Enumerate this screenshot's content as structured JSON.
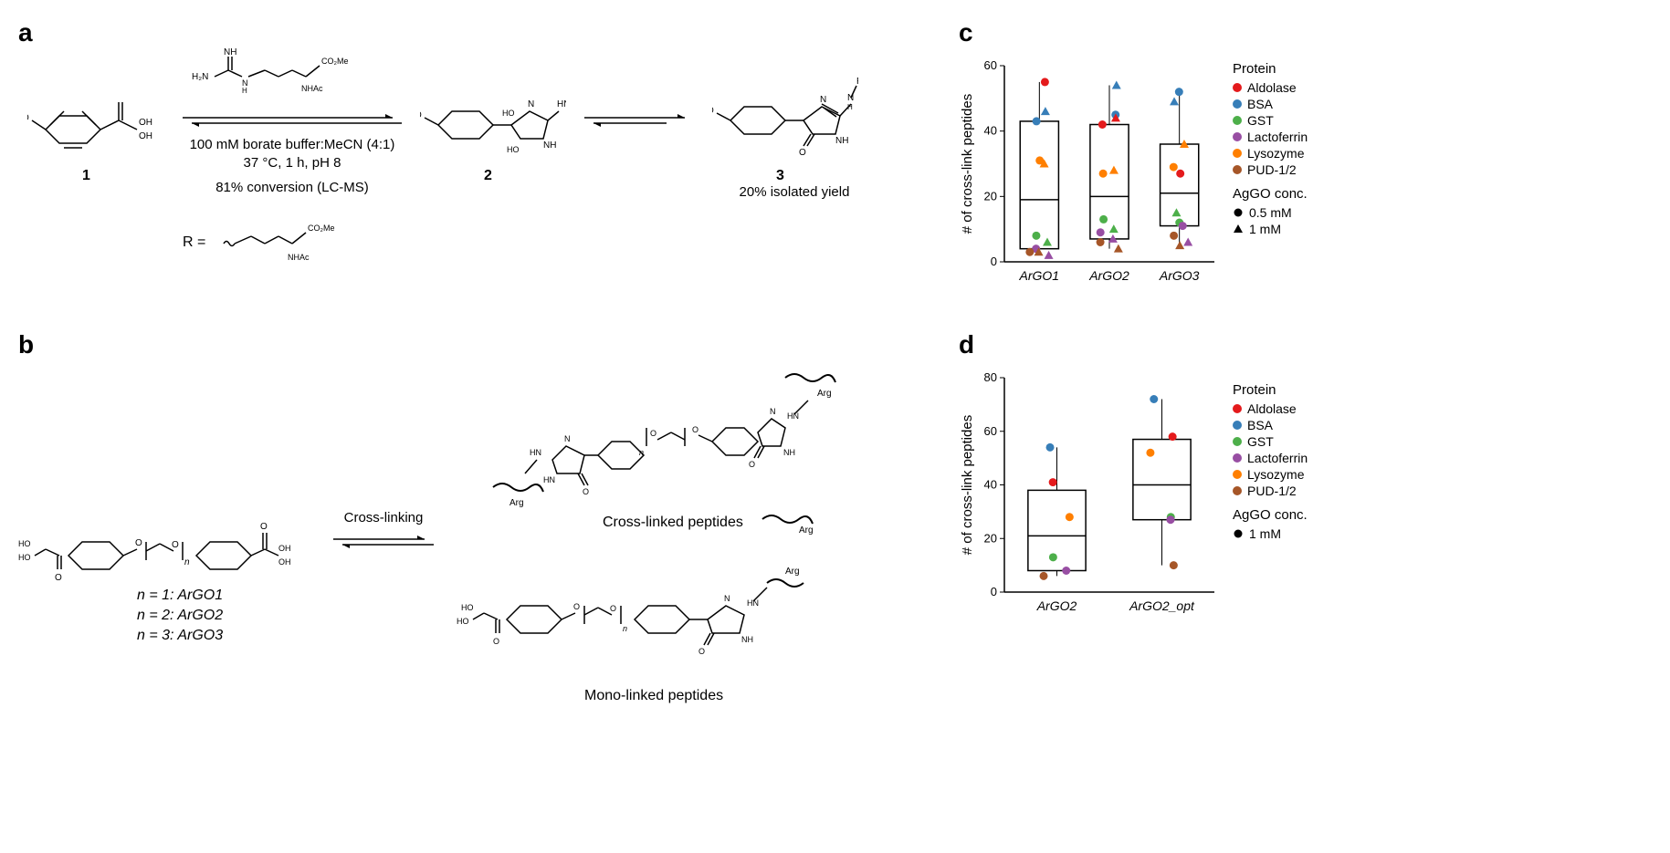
{
  "panels": {
    "a": {
      "label": "a"
    },
    "b": {
      "label": "b"
    },
    "c": {
      "label": "c"
    },
    "d": {
      "label": "d"
    }
  },
  "scheme_a": {
    "compound1_label": "1",
    "compound2_label": "2",
    "compound3_label": "3",
    "conditions_line1": "100 mM borate buffer:MeCN (4:1)",
    "conditions_line2": "37 °C, 1 h, pH 8",
    "conversion": "81% conversion (LC-MS)",
    "yield": "20% isolated yield",
    "r_group": "R ="
  },
  "scheme_b": {
    "crosslink_label": "Cross-linking",
    "n_labels": {
      "n1": "n = 1: ArGO1",
      "n2": "n = 2: ArGO2",
      "n3": "n = 3: ArGO3"
    },
    "crosslinked_label": "Cross-linked peptides",
    "monolinked_label": "Mono-linked peptides",
    "arg_label": "Arg"
  },
  "chart_c": {
    "ylabel": "# of cross-link peptides",
    "ylim": [
      0,
      60
    ],
    "ytick_step": 20,
    "categories": [
      "ArGO1",
      "ArGO2",
      "ArGO3"
    ],
    "box_data": [
      {
        "q1": 4,
        "median": 19,
        "q3": 43,
        "whisker_low": 2,
        "whisker_high": 55
      },
      {
        "q1": 7,
        "median": 20,
        "q3": 42,
        "whisker_low": 4,
        "whisker_high": 54
      },
      {
        "q1": 11,
        "median": 21,
        "q3": 36,
        "whisker_low": 5,
        "whisker_high": 52
      }
    ],
    "points": [
      {
        "cat": 0,
        "y": 55,
        "color": "#E41A1C",
        "shape": "circle"
      },
      {
        "cat": 0,
        "y": 46,
        "color": "#377EB8",
        "shape": "triangle"
      },
      {
        "cat": 0,
        "y": 43,
        "color": "#377EB8",
        "shape": "circle"
      },
      {
        "cat": 0,
        "y": 31,
        "color": "#FF7F00",
        "shape": "circle"
      },
      {
        "cat": 0,
        "y": 30,
        "color": "#FF7F00",
        "shape": "triangle"
      },
      {
        "cat": 0,
        "y": 8,
        "color": "#4DAF4A",
        "shape": "circle"
      },
      {
        "cat": 0,
        "y": 6,
        "color": "#4DAF4A",
        "shape": "triangle"
      },
      {
        "cat": 0,
        "y": 4,
        "color": "#984EA3",
        "shape": "circle"
      },
      {
        "cat": 0,
        "y": 2,
        "color": "#984EA3",
        "shape": "triangle"
      },
      {
        "cat": 0,
        "y": 3,
        "color": "#A65628",
        "shape": "circle"
      },
      {
        "cat": 0,
        "y": 3,
        "color": "#A65628",
        "shape": "triangle"
      },
      {
        "cat": 1,
        "y": 54,
        "color": "#377EB8",
        "shape": "triangle"
      },
      {
        "cat": 1,
        "y": 45,
        "color": "#377EB8",
        "shape": "circle"
      },
      {
        "cat": 1,
        "y": 44,
        "color": "#E41A1C",
        "shape": "triangle"
      },
      {
        "cat": 1,
        "y": 42,
        "color": "#E41A1C",
        "shape": "circle"
      },
      {
        "cat": 1,
        "y": 28,
        "color": "#FF7F00",
        "shape": "triangle"
      },
      {
        "cat": 1,
        "y": 27,
        "color": "#FF7F00",
        "shape": "circle"
      },
      {
        "cat": 1,
        "y": 13,
        "color": "#4DAF4A",
        "shape": "circle"
      },
      {
        "cat": 1,
        "y": 10,
        "color": "#4DAF4A",
        "shape": "triangle"
      },
      {
        "cat": 1,
        "y": 9,
        "color": "#984EA3",
        "shape": "circle"
      },
      {
        "cat": 1,
        "y": 7,
        "color": "#984EA3",
        "shape": "triangle"
      },
      {
        "cat": 1,
        "y": 6,
        "color": "#A65628",
        "shape": "circle"
      },
      {
        "cat": 1,
        "y": 4,
        "color": "#A65628",
        "shape": "triangle"
      },
      {
        "cat": 2,
        "y": 52,
        "color": "#377EB8",
        "shape": "circle"
      },
      {
        "cat": 2,
        "y": 49,
        "color": "#377EB8",
        "shape": "triangle"
      },
      {
        "cat": 2,
        "y": 36,
        "color": "#FF7F00",
        "shape": "triangle"
      },
      {
        "cat": 2,
        "y": 29,
        "color": "#FF7F00",
        "shape": "circle"
      },
      {
        "cat": 2,
        "y": 27,
        "color": "#E41A1C",
        "shape": "circle"
      },
      {
        "cat": 2,
        "y": 15,
        "color": "#4DAF4A",
        "shape": "triangle"
      },
      {
        "cat": 2,
        "y": 12,
        "color": "#4DAF4A",
        "shape": "circle"
      },
      {
        "cat": 2,
        "y": 11,
        "color": "#984EA3",
        "shape": "circle"
      },
      {
        "cat": 2,
        "y": 6,
        "color": "#984EA3",
        "shape": "triangle"
      },
      {
        "cat": 2,
        "y": 8,
        "color": "#A65628",
        "shape": "circle"
      },
      {
        "cat": 2,
        "y": 5,
        "color": "#A65628",
        "shape": "triangle"
      }
    ],
    "legend_protein_title": "Protein",
    "legend_proteins": [
      {
        "name": "Aldolase",
        "color": "#E41A1C"
      },
      {
        "name": "BSA",
        "color": "#377EB8"
      },
      {
        "name": "GST",
        "color": "#4DAF4A"
      },
      {
        "name": "Lactoferrin",
        "color": "#984EA3"
      },
      {
        "name": "Lysozyme",
        "color": "#FF7F00"
      },
      {
        "name": "PUD-1/2",
        "color": "#A65628"
      }
    ],
    "legend_conc_title": "AgGO conc.",
    "legend_concs": [
      {
        "label": "0.5 mM",
        "shape": "circle"
      },
      {
        "label": "1 mM",
        "shape": "triangle"
      }
    ]
  },
  "chart_d": {
    "ylabel": "# of cross-link peptides",
    "ylim": [
      0,
      80
    ],
    "ytick_step": 20,
    "categories": [
      "ArGO2",
      "ArGO2_opt"
    ],
    "box_data": [
      {
        "q1": 8,
        "median": 21,
        "q3": 38,
        "whisker_low": 6,
        "whisker_high": 54
      },
      {
        "q1": 27,
        "median": 40,
        "q3": 57,
        "whisker_low": 10,
        "whisker_high": 72
      }
    ],
    "points": [
      {
        "cat": 0,
        "y": 54,
        "color": "#377EB8",
        "shape": "circle"
      },
      {
        "cat": 0,
        "y": 41,
        "color": "#E41A1C",
        "shape": "circle"
      },
      {
        "cat": 0,
        "y": 28,
        "color": "#FF7F00",
        "shape": "circle"
      },
      {
        "cat": 0,
        "y": 13,
        "color": "#4DAF4A",
        "shape": "circle"
      },
      {
        "cat": 0,
        "y": 8,
        "color": "#984EA3",
        "shape": "circle"
      },
      {
        "cat": 0,
        "y": 6,
        "color": "#A65628",
        "shape": "circle"
      },
      {
        "cat": 1,
        "y": 72,
        "color": "#377EB8",
        "shape": "circle"
      },
      {
        "cat": 1,
        "y": 58,
        "color": "#E41A1C",
        "shape": "circle"
      },
      {
        "cat": 1,
        "y": 52,
        "color": "#FF7F00",
        "shape": "circle"
      },
      {
        "cat": 1,
        "y": 28,
        "color": "#4DAF4A",
        "shape": "circle"
      },
      {
        "cat": 1,
        "y": 27,
        "color": "#984EA3",
        "shape": "circle"
      },
      {
        "cat": 1,
        "y": 10,
        "color": "#A65628",
        "shape": "circle"
      }
    ],
    "legend_protein_title": "Protein",
    "legend_proteins": [
      {
        "name": "Aldolase",
        "color": "#E41A1C"
      },
      {
        "name": "BSA",
        "color": "#377EB8"
      },
      {
        "name": "GST",
        "color": "#4DAF4A"
      },
      {
        "name": "Lactoferrin",
        "color": "#984EA3"
      },
      {
        "name": "Lysozyme",
        "color": "#FF7F00"
      },
      {
        "name": "PUD-1/2",
        "color": "#A65628"
      }
    ],
    "legend_conc_title": "AgGO conc.",
    "legend_concs": [
      {
        "label": "1 mM",
        "shape": "circle"
      }
    ]
  }
}
